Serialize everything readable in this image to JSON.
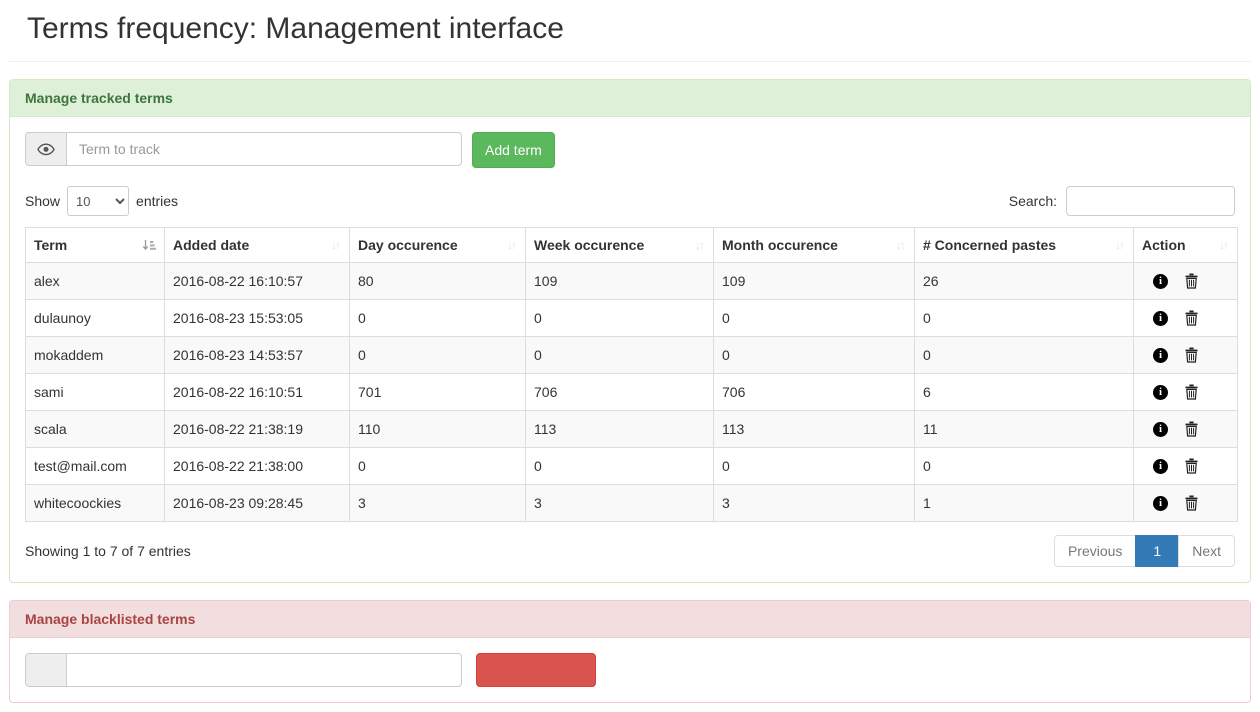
{
  "page": {
    "title": "Terms frequency: Management interface"
  },
  "colors": {
    "success_text": "#3c763d",
    "success_bg": "#dff0d8",
    "success_border": "#d6e9c6",
    "danger_text": "#a94442",
    "danger_bg": "#f2dede",
    "danger_border": "#ebccd1",
    "btn_success": "#5cb85c",
    "btn_success_border": "#4cae4c",
    "btn_danger": "#d9534f",
    "btn_danger_border": "#d43f3a",
    "pagination_active": "#337ab7"
  },
  "icons": {
    "addon": "eye-icon",
    "sort_active": "sort-asc-icon",
    "sort_inactive": "sort-icon",
    "row_actions": [
      "info-icon",
      "trash-icon"
    ]
  },
  "tracked_panel": {
    "title": "Manage tracked terms",
    "input_placeholder": "Term to track",
    "add_button": "Add term",
    "show_label": "Show",
    "page_length": "10",
    "entries_label": "entries",
    "search_label": "Search:",
    "info_text": "Showing 1 to 7 of 7 entries",
    "pagination": {
      "previous": "Previous",
      "current": "1",
      "next": "Next"
    },
    "table": {
      "headers": [
        "Term",
        "Added date",
        "Day occurence",
        "Week occurence",
        "Month occurence",
        "# Concerned pastes",
        "Action"
      ],
      "rows": [
        {
          "term": "alex",
          "added": "2016-08-22 16:10:57",
          "day": "80",
          "week": "109",
          "month": "109",
          "pastes": "26"
        },
        {
          "term": "dulaunoy",
          "added": "2016-08-23 15:53:05",
          "day": "0",
          "week": "0",
          "month": "0",
          "pastes": "0"
        },
        {
          "term": "mokaddem",
          "added": "2016-08-23 14:53:57",
          "day": "0",
          "week": "0",
          "month": "0",
          "pastes": "0"
        },
        {
          "term": "sami",
          "added": "2016-08-22 16:10:51",
          "day": "701",
          "week": "706",
          "month": "706",
          "pastes": "6"
        },
        {
          "term": "scala",
          "added": "2016-08-22 21:38:19",
          "day": "110",
          "week": "113",
          "month": "113",
          "pastes": "11"
        },
        {
          "term": "test@mail.com",
          "added": "2016-08-22 21:38:00",
          "day": "0",
          "week": "0",
          "month": "0",
          "pastes": "0"
        },
        {
          "term": "whitecoockies",
          "added": "2016-08-23 09:28:45",
          "day": "3",
          "week": "3",
          "month": "3",
          "pastes": "1"
        }
      ]
    }
  },
  "blacklist_panel": {
    "title": "Manage blacklisted terms"
  }
}
